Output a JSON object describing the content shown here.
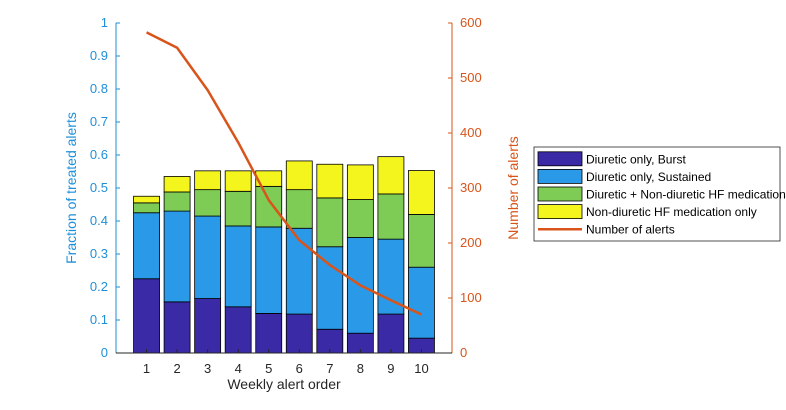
{
  "chart_data": {
    "type": "bar",
    "stacked": true,
    "categories": [
      "1",
      "2",
      "3",
      "4",
      "5",
      "6",
      "7",
      "8",
      "9",
      "10"
    ],
    "xlabel": "Weekly alert order",
    "ylabel_left": "Fraction of treated alerts",
    "ylabel_right": "Number of alerts",
    "ylim_left": [
      0,
      1
    ],
    "ylim_right": [
      0,
      600
    ],
    "yticks_left": [
      "0",
      "0.1",
      "0.2",
      "0.3",
      "0.4",
      "0.5",
      "0.6",
      "0.7",
      "0.8",
      "0.9",
      "1"
    ],
    "yticks_right": [
      "0",
      "100",
      "200",
      "300",
      "400",
      "500",
      "600"
    ],
    "grid": false,
    "legend_position": "right",
    "series": [
      {
        "name": "Diuretic only, Burst",
        "axis": "left",
        "color": "#3b2aa6",
        "values": [
          0.225,
          0.155,
          0.165,
          0.14,
          0.12,
          0.118,
          0.072,
          0.06,
          0.118,
          0.045
        ]
      },
      {
        "name": "Diuretic only, Sustained",
        "axis": "left",
        "color": "#2a9ae8",
        "values": [
          0.2,
          0.275,
          0.25,
          0.245,
          0.262,
          0.26,
          0.25,
          0.29,
          0.227,
          0.215
        ]
      },
      {
        "name": "Diuretic + Non-diuretic HF medication",
        "axis": "left",
        "color": "#7ecb55",
        "values": [
          0.03,
          0.058,
          0.08,
          0.105,
          0.123,
          0.117,
          0.148,
          0.115,
          0.137,
          0.16
        ]
      },
      {
        "name": "Non-diuretic HF medication only",
        "axis": "left",
        "color": "#f5f51e",
        "values": [
          0.02,
          0.047,
          0.057,
          0.062,
          0.047,
          0.087,
          0.102,
          0.105,
          0.113,
          0.133
        ]
      },
      {
        "name": "Number of alerts",
        "type": "line",
        "axis": "right",
        "color": "#d9541a",
        "values": [
          583,
          555,
          478,
          383,
          278,
          205,
          160,
          123,
          96,
          70
        ]
      }
    ]
  }
}
